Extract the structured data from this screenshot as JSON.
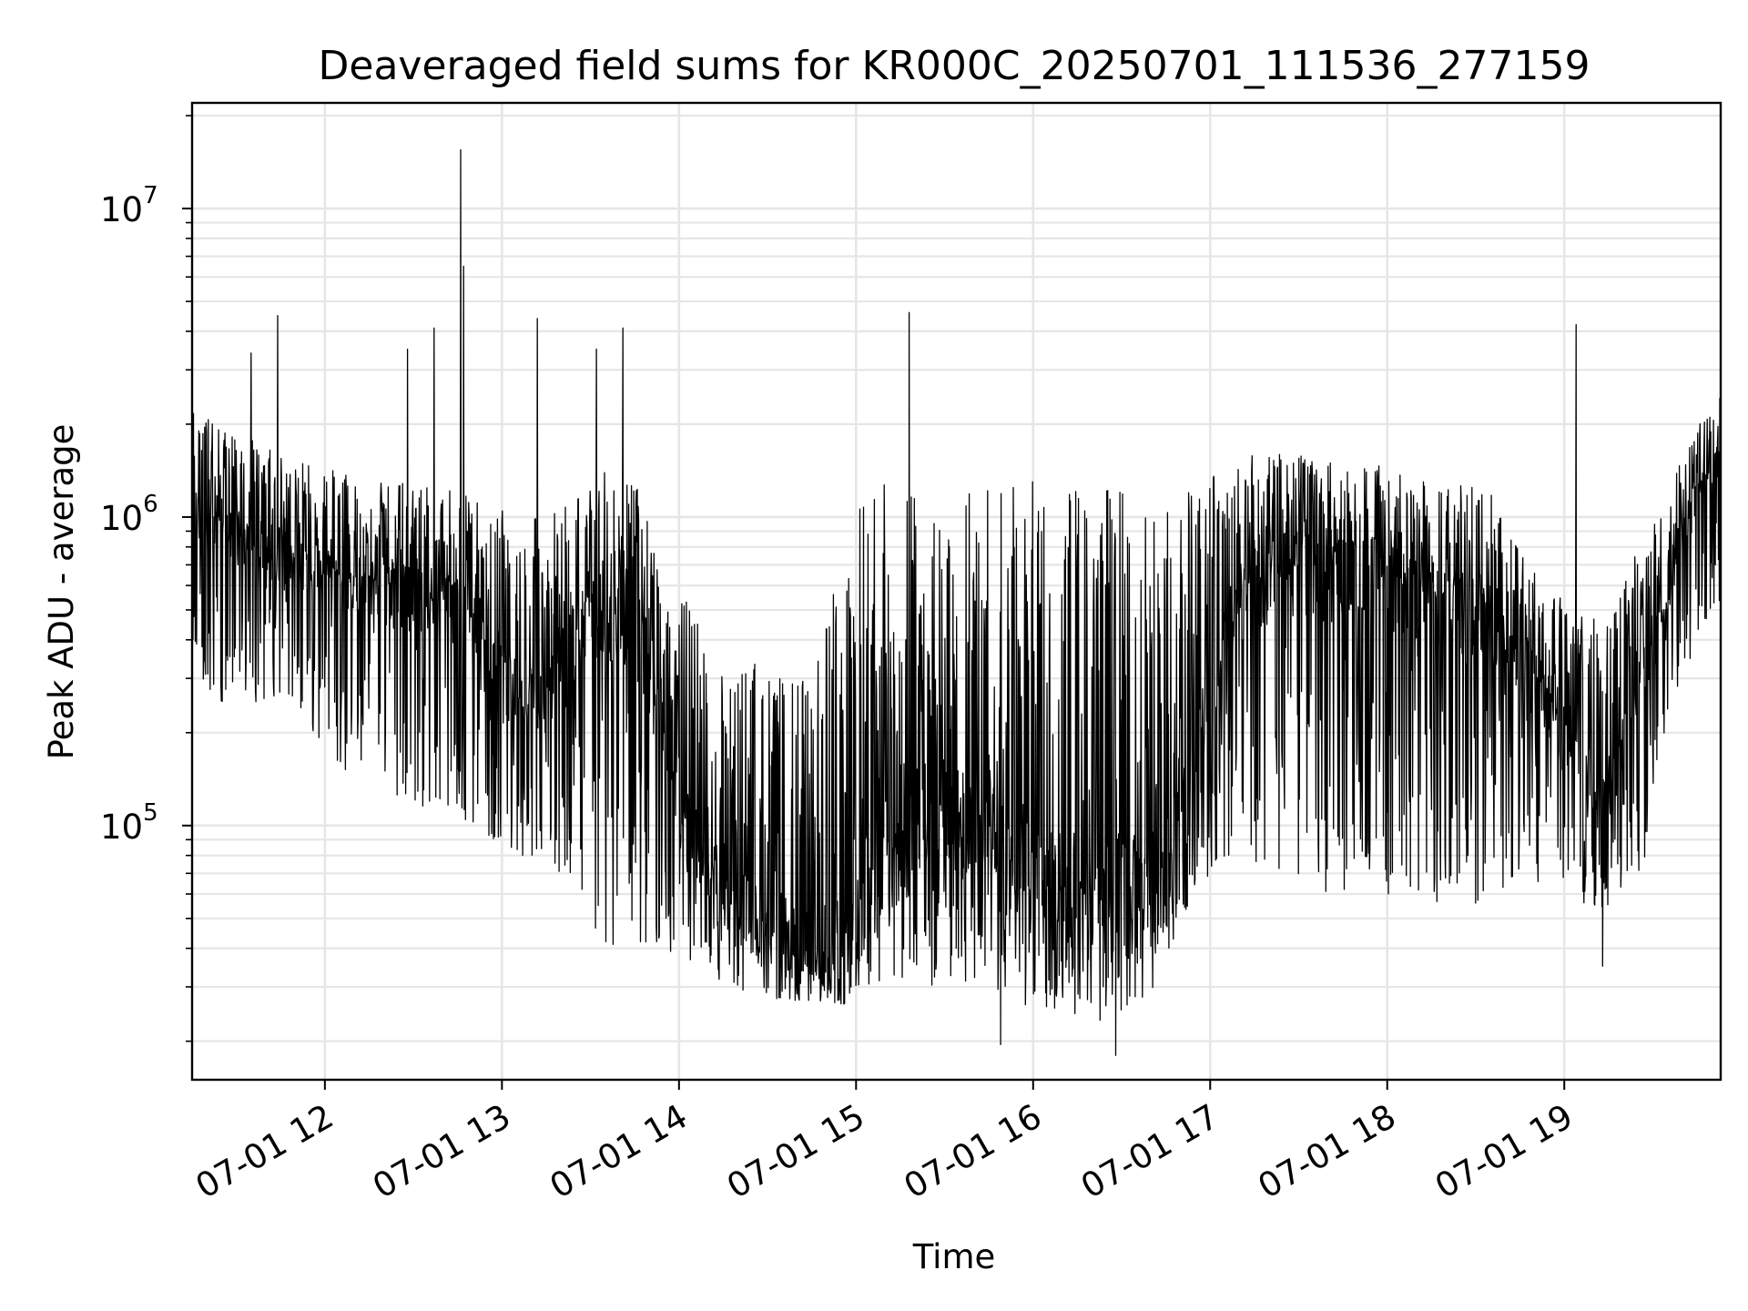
{
  "chart_data": {
    "type": "line",
    "title": "Deaveraged field sums for KR000C_20250701_111536_277159",
    "xlabel": "Time",
    "ylabel": "Peak ADU - average",
    "yscale": "log",
    "ylim": [
      15000,
      22000000
    ],
    "xlim": [
      "2025-07-01 11:15",
      "2025-07-01 19:53"
    ],
    "grid": true,
    "legend": "none",
    "line_color": "#000000",
    "x_ticks": [
      {
        "value": "2025-07-01 12:00",
        "label": "07-01 12"
      },
      {
        "value": "2025-07-01 13:00",
        "label": "07-01 13"
      },
      {
        "value": "2025-07-01 14:00",
        "label": "07-01 14"
      },
      {
        "value": "2025-07-01 15:00",
        "label": "07-01 15"
      },
      {
        "value": "2025-07-01 16:00",
        "label": "07-01 16"
      },
      {
        "value": "2025-07-01 17:00",
        "label": "07-01 17"
      },
      {
        "value": "2025-07-01 18:00",
        "label": "07-01 18"
      },
      {
        "value": "2025-07-01 19:00",
        "label": "07-01 19"
      }
    ],
    "y_ticks": [
      {
        "value": 100000,
        "base": "10",
        "exp": "5"
      },
      {
        "value": 1000000,
        "base": "10",
        "exp": "6"
      },
      {
        "value": 10000000,
        "base": "10",
        "exp": "7"
      }
    ],
    "series": [
      {
        "x": [
          "2025-07-01 11:15",
          "2025-07-01 11:25",
          "2025-07-01 11:35",
          "2025-07-01 11:45",
          "2025-07-01 11:55",
          "2025-07-01 12:05",
          "2025-07-01 12:15",
          "2025-07-01 12:25",
          "2025-07-01 12:35",
          "2025-07-01 12:45",
          "2025-07-01 12:55",
          "2025-07-01 13:05",
          "2025-07-01 13:15",
          "2025-07-01 13:25",
          "2025-07-01 13:35",
          "2025-07-01 13:45",
          "2025-07-01 13:55",
          "2025-07-01 14:05",
          "2025-07-01 14:15",
          "2025-07-01 14:25",
          "2025-07-01 14:35",
          "2025-07-01 14:45",
          "2025-07-01 14:55",
          "2025-07-01 15:05",
          "2025-07-01 15:15",
          "2025-07-01 15:25",
          "2025-07-01 15:35",
          "2025-07-01 15:45",
          "2025-07-01 15:55",
          "2025-07-01 16:05",
          "2025-07-01 16:15",
          "2025-07-01 16:25",
          "2025-07-01 16:35",
          "2025-07-01 16:45",
          "2025-07-01 16:55",
          "2025-07-01 17:05",
          "2025-07-01 17:15",
          "2025-07-01 17:25",
          "2025-07-01 17:35",
          "2025-07-01 17:45",
          "2025-07-01 17:55",
          "2025-07-01 18:05",
          "2025-07-01 18:15",
          "2025-07-01 18:25",
          "2025-07-01 18:35",
          "2025-07-01 18:45",
          "2025-07-01 18:55",
          "2025-07-01 19:05",
          "2025-07-01 19:15",
          "2025-07-01 19:25",
          "2025-07-01 19:35",
          "2025-07-01 19:45",
          "2025-07-01 19:52"
        ],
        "y_center": [
          1000000,
          900000,
          800000,
          750000,
          700000,
          650000,
          600000,
          550000,
          500000,
          500000,
          400000,
          300000,
          250000,
          400000,
          500000,
          450000,
          200000,
          80000,
          60000,
          50000,
          45000,
          40000,
          40000,
          60000,
          80000,
          120000,
          100000,
          90000,
          80000,
          70000,
          60000,
          55000,
          60000,
          70000,
          150000,
          400000,
          600000,
          700000,
          700000,
          650000,
          600000,
          600000,
          550000,
          500000,
          450000,
          350000,
          250000,
          150000,
          120000,
          300000,
          600000,
          1200000,
          1500000
        ],
        "y_high": [
          2200000,
          2000000,
          1800000,
          1600000,
          1500000,
          1400000,
          1300000,
          1300000,
          1300000,
          1200000,
          1100000,
          1000000,
          1000000,
          1200000,
          1400000,
          1300000,
          700000,
          500000,
          300000,
          350000,
          300000,
          300000,
          800000,
          1300000,
          1300000,
          1300000,
          1300000,
          1300000,
          1300000,
          1300000,
          1300000,
          1300000,
          1300000,
          1200000,
          1200000,
          1500000,
          1600000,
          1600000,
          1600000,
          1500000,
          1500000,
          1400000,
          1400000,
          1300000,
          1200000,
          800000,
          600000,
          500000,
          450000,
          800000,
          1200000,
          2000000,
          2500000
        ],
        "y_low": [
          300000,
          250000,
          250000,
          250000,
          200000,
          150000,
          150000,
          120000,
          110000,
          110000,
          90000,
          80000,
          80000,
          60000,
          40000,
          40000,
          40000,
          35000,
          30000,
          28000,
          27000,
          27000,
          25000,
          30000,
          30000,
          30000,
          28000,
          27000,
          24000,
          25000,
          24000,
          23000,
          24000,
          35000,
          60000,
          80000,
          70000,
          65000,
          60000,
          60000,
          60000,
          60000,
          55000,
          55000,
          55000,
          60000,
          60000,
          55000,
          45000,
          60000,
          200000,
          400000,
          500000
        ],
        "spikes": [
          {
            "x": "2025-07-01 11:35",
            "y": 3400000
          },
          {
            "x": "2025-07-01 11:44",
            "y": 4500000
          },
          {
            "x": "2025-07-01 12:28",
            "y": 3500000
          },
          {
            "x": "2025-07-01 12:37",
            "y": 4100000
          },
          {
            "x": "2025-07-01 12:46",
            "y": 15500000
          },
          {
            "x": "2025-07-01 12:47",
            "y": 6500000
          },
          {
            "x": "2025-07-01 13:12",
            "y": 4400000
          },
          {
            "x": "2025-07-01 13:32",
            "y": 3500000
          },
          {
            "x": "2025-07-01 13:41",
            "y": 4100000
          },
          {
            "x": "2025-07-01 15:18",
            "y": 4600000
          },
          {
            "x": "2025-07-01 19:04",
            "y": 4200000
          },
          {
            "x": "2025-07-01 16:28",
            "y": 18000
          },
          {
            "x": "2025-07-01 15:49",
            "y": 19500
          },
          {
            "x": "2025-07-01 19:13",
            "y": 35000
          }
        ]
      }
    ]
  }
}
